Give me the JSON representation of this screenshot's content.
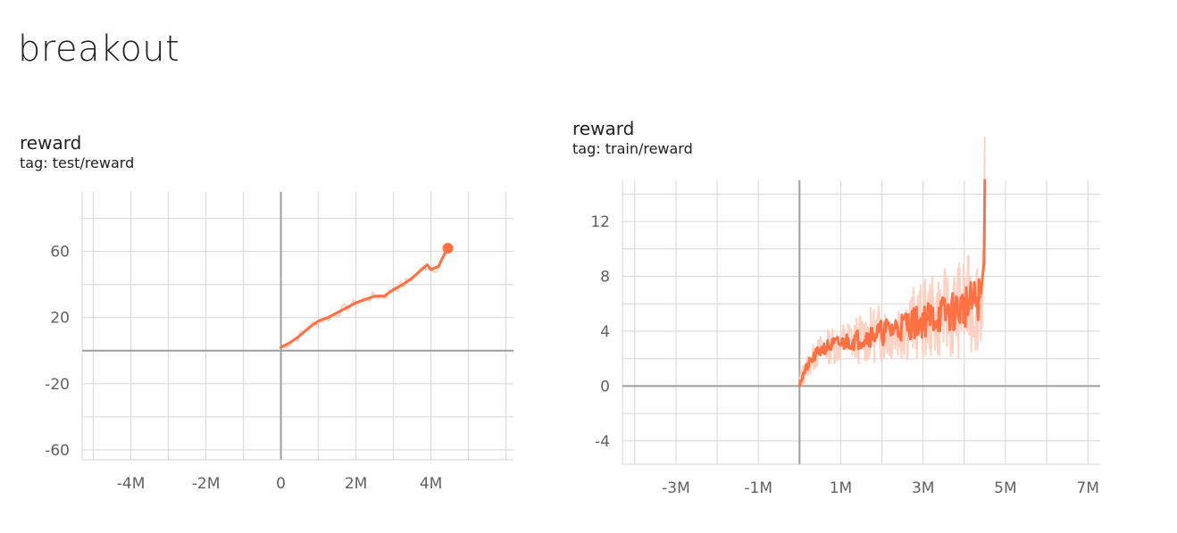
{
  "page": {
    "title": "breakout"
  },
  "colors": {
    "series": "#ff7043",
    "series_raw": "#ffccbc",
    "grid": "#d6d6d6",
    "axis": "#9e9e9e"
  },
  "chart_data": [
    {
      "type": "line",
      "title": "reward",
      "tag": "tag: test/reward",
      "xlim": [
        -5300000,
        6200000
      ],
      "ylim": [
        -66,
        96
      ],
      "x_ticks": [
        -4000000,
        -2000000,
        0,
        2000000,
        4000000
      ],
      "x_tick_labels": [
        "-4M",
        "-2M",
        "0",
        "2M",
        "4M"
      ],
      "y_ticks": [
        60,
        20,
        -20,
        -60
      ],
      "y_tick_labels": [
        "60",
        "20",
        "-20",
        "-60"
      ],
      "grid": true,
      "series": [
        {
          "x": [
            0,
            250000,
            500000,
            750000,
            1000000,
            1250000,
            1500000,
            1750000,
            2000000,
            2250000,
            2500000,
            2750000,
            3000000,
            3250000,
            3500000,
            3750000,
            3900000,
            4000000,
            4200000,
            4350000,
            4450000
          ],
          "y": [
            2,
            5,
            9,
            14,
            18,
            20,
            23,
            26,
            29,
            31,
            33,
            33,
            37,
            40,
            44,
            49,
            52,
            49,
            51,
            58,
            62
          ]
        }
      ]
    },
    {
      "type": "line",
      "title": "reward",
      "tag": "tag: train/reward",
      "xlim": [
        -4300000,
        7300000
      ],
      "ylim": [
        -5.7,
        15
      ],
      "x_ticks": [
        -3000000,
        -1000000,
        1000000,
        3000000,
        5000000,
        7000000
      ],
      "x_tick_labels": [
        "-3M",
        "-1M",
        "1M",
        "3M",
        "5M",
        "7M"
      ],
      "y_ticks": [
        12,
        8,
        4,
        0,
        -4
      ],
      "y_tick_labels": [
        "12",
        "8",
        "4",
        "0",
        "-4"
      ],
      "grid": true,
      "series": [
        {
          "x": [
            0,
            200000,
            400000,
            600000,
            800000,
            1000000,
            1200000,
            1400000,
            1600000,
            1800000,
            2000000,
            2200000,
            2400000,
            2600000,
            2800000,
            3000000,
            3200000,
            3400000,
            3600000,
            3800000,
            4000000,
            4200000,
            4400000,
            4480000,
            4500000
          ],
          "y": [
            0.3,
            1.5,
            2.3,
            2.8,
            3.0,
            3.1,
            3.3,
            3.4,
            3.6,
            3.8,
            3.9,
            4.1,
            4.3,
            4.5,
            4.6,
            4.8,
            5.0,
            5.2,
            5.3,
            5.5,
            5.8,
            6.0,
            6.5,
            9.0,
            15.0
          ]
        }
      ]
    }
  ]
}
